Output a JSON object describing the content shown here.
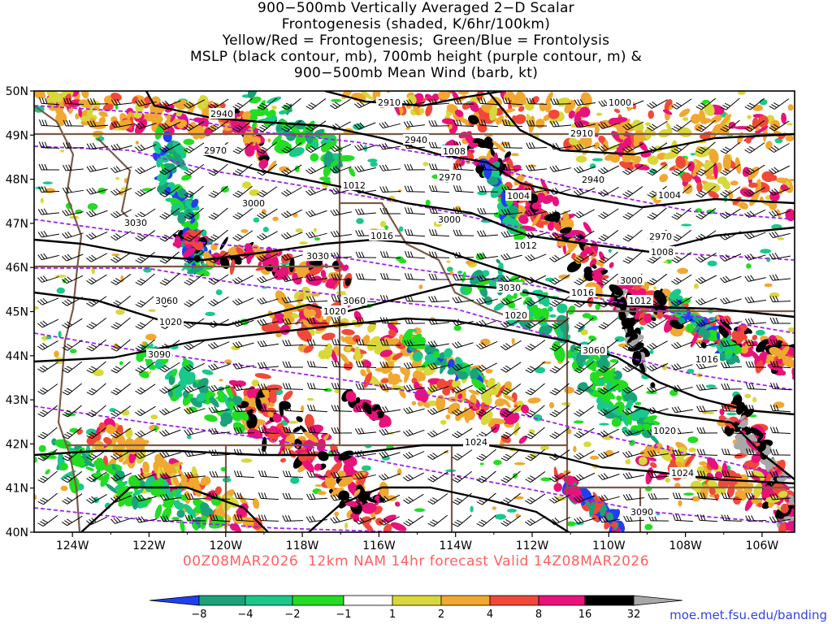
{
  "title_lines": [
    "900−500mb Vertically Averaged 2−D Scalar",
    "Frontogenesis (shaded, K/6hr/100km)",
    "Yellow/Red = Frontogenesis;  Green/Blue = Frontolysis",
    "MSLP (black contour, mb), 700mb height (purple contour, m) &",
    "900−500mb Mean Wind (barb, kt)"
  ],
  "lat_labels": [
    "50N",
    "49N",
    "48N",
    "47N",
    "46N",
    "45N",
    "44N",
    "43N",
    "42N",
    "41N",
    "40N"
  ],
  "lon_labels": [
    "124W",
    "122W",
    "120W",
    "118W",
    "116W",
    "114W",
    "112W",
    "110W",
    "108W",
    "106W"
  ],
  "mslp_labels": [
    "1000",
    "1004",
    "1004",
    "1008",
    "1008",
    "1012",
    "1012",
    "1012",
    "1016",
    "1016",
    "1016",
    "1020",
    "1020",
    "1020",
    "1020",
    "1024",
    "1024"
  ],
  "height_labels": [
    "2910",
    "2940",
    "2940",
    "2940",
    "2970",
    "2970",
    "2970",
    "3000",
    "3000",
    "3000",
    "3030",
    "3030",
    "3030",
    "3060",
    "3060",
    "3060",
    "3090",
    "3090",
    "2910"
  ],
  "valid_line": "00Z08MAR2026  12km NAM 14hr forecast Valid 14Z08MAR2026",
  "colorbar_labels": [
    "−8",
    "−4",
    "−2",
    "−1",
    "1",
    "2",
    "4",
    "8",
    "16",
    "32"
  ],
  "colorbar_colors": [
    "#1f3ff5",
    "#1aa37a",
    "#19c98a",
    "#22dd22",
    "#ffffff",
    "#d8d83a",
    "#f0a830",
    "#f2483a",
    "#e8127a",
    "#000000",
    "#a8a8a8"
  ],
  "credit": "moe.met.fsu.edu/banding",
  "colors": {
    "mslp": "#000000",
    "height": "#a020f0",
    "border": "#7a5a48",
    "barb": "#000000"
  }
}
